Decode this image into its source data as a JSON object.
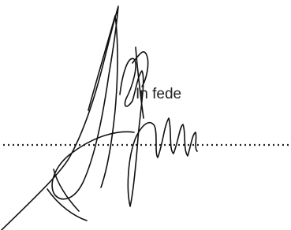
{
  "signature_block": {
    "text": "In fede"
  }
}
